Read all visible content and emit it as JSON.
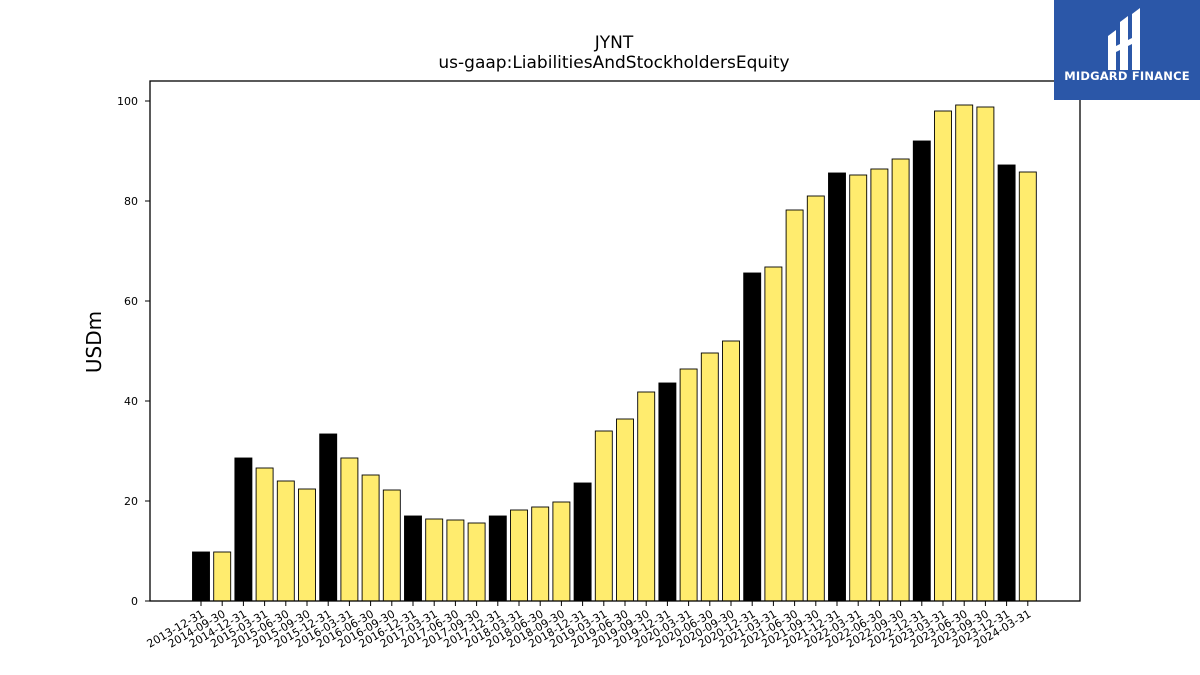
{
  "brand": {
    "name": "MIDGARD FINANCE",
    "bg_color": "#2b57a8"
  },
  "chart_data": {
    "type": "bar",
    "title": "JYNT",
    "subtitle": "us-gaap:LiabilitiesAndStockholdersEquity",
    "ylabel": "USDm",
    "xlabel": "",
    "ylim": [
      0,
      104
    ],
    "yticks": [
      0,
      20,
      40,
      60,
      80,
      100
    ],
    "grid": false,
    "colors": {
      "annual": "#000000",
      "quarterly": "#ffec6e",
      "edge": "#000000"
    },
    "categories": [
      "2013-12-31",
      "2014-09-30",
      "2014-12-31",
      "2015-03-31",
      "2015-06-30",
      "2015-09-30",
      "2015-12-31",
      "2016-03-31",
      "2016-06-30",
      "2016-09-30",
      "2016-12-31",
      "2017-03-31",
      "2017-06-30",
      "2017-09-30",
      "2017-12-31",
      "2018-03-31",
      "2018-06-30",
      "2018-09-30",
      "2018-12-31",
      "2019-03-31",
      "2019-06-30",
      "2019-09-30",
      "2019-12-31",
      "2020-03-31",
      "2020-06-30",
      "2020-09-30",
      "2020-12-31",
      "2021-03-31",
      "2021-06-30",
      "2021-09-30",
      "2021-12-31",
      "2022-03-31",
      "2022-06-30",
      "2022-09-30",
      "2022-12-31",
      "2023-03-31",
      "2023-06-30",
      "2023-09-30",
      "2023-12-31",
      "2024-03-31"
    ],
    "values": [
      9.8,
      9.8,
      28.6,
      26.6,
      24.0,
      22.4,
      33.4,
      28.6,
      25.2,
      22.2,
      17.0,
      16.4,
      16.2,
      15.6,
      17.0,
      18.2,
      18.8,
      19.8,
      23.6,
      34.0,
      36.4,
      41.8,
      43.6,
      46.4,
      49.6,
      52.0,
      65.6,
      66.8,
      78.2,
      81.0,
      85.6,
      85.2,
      86.4,
      88.4,
      92.0,
      98.0,
      99.2,
      98.8,
      87.2,
      85.8
    ],
    "is_annual": [
      true,
      false,
      true,
      false,
      false,
      false,
      true,
      false,
      false,
      false,
      true,
      false,
      false,
      false,
      true,
      false,
      false,
      false,
      true,
      false,
      false,
      false,
      true,
      false,
      false,
      false,
      true,
      false,
      false,
      false,
      true,
      false,
      false,
      false,
      true,
      false,
      false,
      false,
      true,
      false
    ]
  }
}
